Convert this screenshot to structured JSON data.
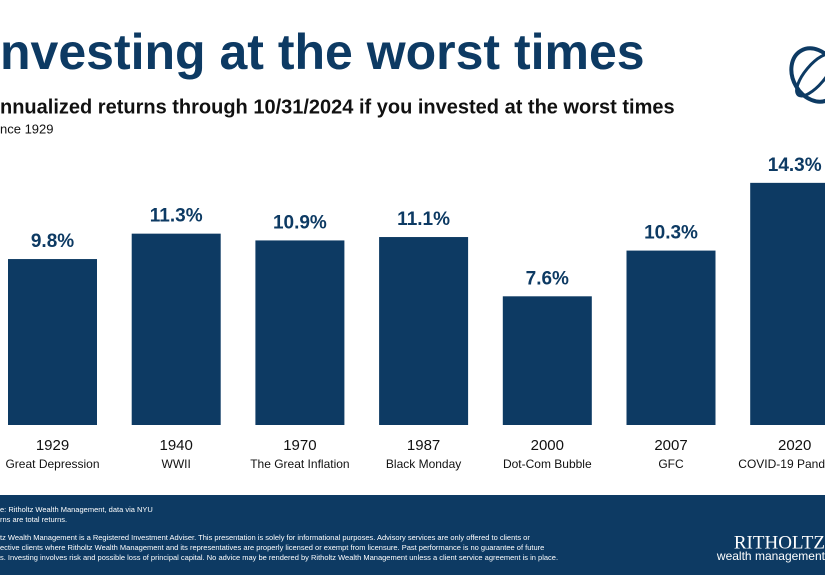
{
  "chart_data": {
    "type": "bar",
    "title": "nvesting at the worst times",
    "subtitle": "nnualized returns through 10/31/2024 if you invested at the worst times",
    "note": "nce 1929",
    "categories": [
      "1929",
      "1940",
      "1970",
      "1987",
      "2000",
      "2007",
      "2020"
    ],
    "category_descriptions": [
      "Great Depression",
      "WWII",
      "The Great Inflation",
      "Black Monday",
      "Dot-Com Bubble",
      "GFC",
      "COVID-19 Pand"
    ],
    "values": [
      9.8,
      11.3,
      10.9,
      11.1,
      7.6,
      10.3,
      14.3
    ],
    "value_labels": [
      "9.8%",
      "11.3%",
      "10.9%",
      "11.1%",
      "7.6%",
      "10.3%",
      "14.3%"
    ],
    "color": "#0d3a63",
    "ylim": [
      0,
      15
    ]
  },
  "footer": {
    "lines": [
      "e: Ritholtz Wealth Management, data via NYU",
      "rns are total returns.",
      "tz Wealth Management is a Registered Investment Adviser. This presentation is solely for informational purposes. Advisory services are only offered to clients or",
      "ective clients where Ritholtz Wealth Management and its representatives are properly licensed or exempt from licensure. Past performance is no guarantee of future",
      "s. Investing involves risk and possible loss of principal capital. No advice may be rendered by Ritholtz Wealth Management unless a client service agreement is in place."
    ],
    "brand": "RITHOLTZ",
    "brand_sub": "wealth management"
  }
}
